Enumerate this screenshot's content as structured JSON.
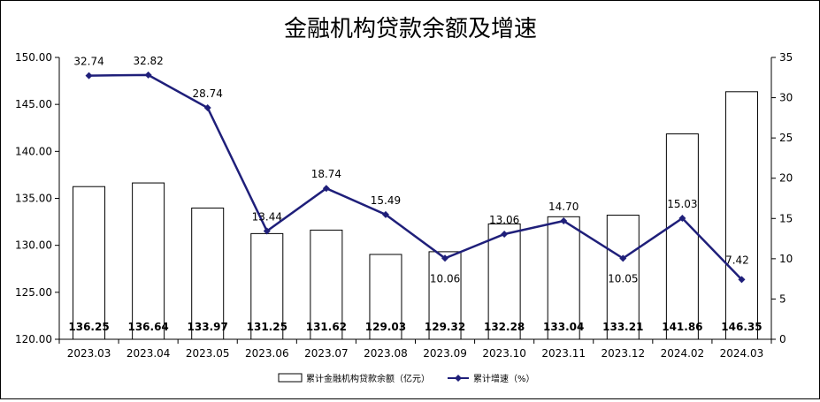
{
  "chart_data": {
    "type": "bar",
    "title": "金融机构贷款余额及增速",
    "categories": [
      "2023.03",
      "2023.04",
      "2023.05",
      "2023.06",
      "2023.07",
      "2023.08",
      "2023.09",
      "2023.10",
      "2023.11",
      "2023.12",
      "2024.02",
      "2024.03"
    ],
    "series": [
      {
        "name": "累计金融机构贷款余额（亿元）",
        "type": "bar",
        "axis": "left",
        "values": [
          136.25,
          136.64,
          133.97,
          131.25,
          131.62,
          129.03,
          129.32,
          132.28,
          133.04,
          133.21,
          141.86,
          146.35
        ],
        "labels": [
          "136.25",
          "136.64",
          "133.97",
          "131.25",
          "131.62",
          "129.03",
          "129.32",
          "132.28",
          "133.04",
          "133.21",
          "141.86",
          "146.35"
        ]
      },
      {
        "name": "累计增速（%）",
        "type": "line",
        "axis": "right",
        "values": [
          32.74,
          32.82,
          28.74,
          13.44,
          18.74,
          15.49,
          10.06,
          13.06,
          14.7,
          10.05,
          15.03,
          7.42
        ],
        "labels": [
          "32.74",
          "32.82",
          "28.74",
          "13.44",
          "18.74",
          "15.49",
          "10.06",
          "13.06",
          "14.70",
          "10.05",
          "15.03",
          "7.42"
        ]
      }
    ],
    "y_left": {
      "ylim": [
        120,
        150
      ],
      "ticks": [
        "120.00",
        "125.00",
        "130.00",
        "135.00",
        "140.00",
        "145.00",
        "150.00"
      ]
    },
    "y_right": {
      "ylim": [
        0,
        35
      ],
      "ticks": [
        "0",
        "5",
        "10",
        "15",
        "20",
        "25",
        "30",
        "35"
      ]
    },
    "grid": false,
    "legend": "bottom",
    "colors": {
      "bar_fill": "#ffffff",
      "bar_stroke": "#000000",
      "line": "#1f1f7a"
    }
  }
}
